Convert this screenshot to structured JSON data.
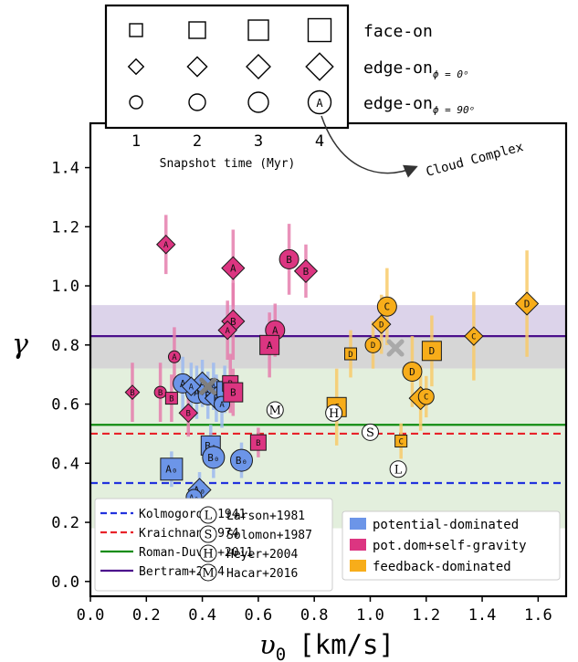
{
  "chart_data": {
    "type": "scatter",
    "xlabel_main": "υ",
    "xlabel_sub": "0",
    "xlabel_unit": "[km/s]",
    "ylabel": "γ",
    "xlim": [
      0.0,
      1.7
    ],
    "ylim": [
      -0.05,
      1.55
    ],
    "xticks": [
      "0.0",
      "0.2",
      "0.4",
      "0.6",
      "0.8",
      "1.0",
      "1.2",
      "1.4",
      "1.6"
    ],
    "xtick_values": [
      0.0,
      0.2,
      0.4,
      0.6,
      0.8,
      1.0,
      1.2,
      1.4,
      1.6
    ],
    "yticks": [
      "0.0",
      "0.2",
      "0.4",
      "0.6",
      "0.8",
      "1.0",
      "1.2",
      "1.4"
    ],
    "ytick_values": [
      0.0,
      0.2,
      0.4,
      0.6,
      0.8,
      1.0,
      1.2,
      1.4
    ],
    "bands": [
      {
        "color": "#dcd3ea",
        "y0": 0.74,
        "y1": 0.935
      },
      {
        "color": "#d6d6d6",
        "y0": 0.72,
        "y1": 0.83
      },
      {
        "color": "#e3efdd",
        "y0": 0.18,
        "y1": 0.72
      }
    ],
    "hlines": [
      {
        "name": "Bertram+2014",
        "y": 0.83,
        "color": "#4b0f8c",
        "dash": "solid"
      },
      {
        "name": "Roman-Duval+2011",
        "y": 0.53,
        "color": "#118c11",
        "dash": "solid"
      },
      {
        "name": "Kraichnan+1974",
        "y": 0.5,
        "color": "#e8232a",
        "dash": "dashed"
      },
      {
        "name": "Kolmogorov+1941",
        "y": 0.333,
        "color": "#2233dd",
        "dash": "dashed"
      }
    ],
    "colors": {
      "potential": "#6c95e8",
      "selfgrav": "#dc3581",
      "feedback": "#f7ad1a",
      "potential_err": "#9dbaf0",
      "selfgrav_err": "#e67fae",
      "feedback_err": "#f9cb6b"
    },
    "series": [
      {
        "name": "potential-dominated",
        "color_key": "potential",
        "points": [
          {
            "x": 0.38,
            "y": 0.64,
            "yerr": 0.09,
            "m": "o",
            "s": 4,
            "label": "A"
          },
          {
            "x": 0.33,
            "y": 0.67,
            "yerr": 0.09,
            "m": "o",
            "s": 3,
            "label": "A"
          },
          {
            "x": 0.42,
            "y": 0.63,
            "yerr": 0.08,
            "m": "o",
            "s": 3,
            "label": "B"
          },
          {
            "x": 0.44,
            "y": 0.66,
            "yerr": 0.08,
            "m": "o",
            "s": 2,
            "label": "A"
          },
          {
            "x": 0.4,
            "y": 0.67,
            "yerr": 0.08,
            "m": "d",
            "s": 3,
            "label": "A"
          },
          {
            "x": 0.36,
            "y": 0.66,
            "yerr": 0.08,
            "m": "d",
            "s": 2,
            "label": "A"
          },
          {
            "x": 0.45,
            "y": 0.62,
            "yerr": 0.08,
            "m": "d",
            "s": 3,
            "label": "B"
          },
          {
            "x": 0.48,
            "y": 0.65,
            "yerr": 0.08,
            "m": "s",
            "s": 2,
            "label": "B"
          },
          {
            "x": 0.47,
            "y": 0.6,
            "yerr": 0.08,
            "m": "o",
            "s": 2,
            "label": "A"
          },
          {
            "x": 0.29,
            "y": 0.38,
            "yerr": 0.06,
            "m": "s",
            "s": 4,
            "label": "A₀"
          },
          {
            "x": 0.43,
            "y": 0.46,
            "yerr": 0.07,
            "m": "s",
            "s": 3,
            "label": "B₀"
          },
          {
            "x": 0.44,
            "y": 0.42,
            "yerr": 0.07,
            "m": "o",
            "s": 4,
            "label": "B₀"
          },
          {
            "x": 0.54,
            "y": 0.41,
            "yerr": 0.06,
            "m": "o",
            "s": 4,
            "label": "B₀"
          },
          {
            "x": 0.39,
            "y": 0.31,
            "yerr": 0.06,
            "m": "d",
            "s": 3,
            "label": "A₀"
          },
          {
            "x": 0.37,
            "y": 0.285,
            "yerr": 0.05,
            "m": "o",
            "s": 2,
            "label": "A₀"
          }
        ]
      },
      {
        "name": "pot.dom+self-gravity",
        "color_key": "selfgrav",
        "points": [
          {
            "x": 0.27,
            "y": 1.14,
            "yerr": 0.1,
            "m": "d",
            "s": 2,
            "label": "A"
          },
          {
            "x": 0.51,
            "y": 1.06,
            "yerr": 0.13,
            "m": "d",
            "s": 3,
            "label": "A"
          },
          {
            "x": 0.71,
            "y": 1.09,
            "yerr": 0.12,
            "m": "o",
            "s": 3,
            "label": "B"
          },
          {
            "x": 0.77,
            "y": 1.05,
            "yerr": 0.09,
            "m": "d",
            "s": 3,
            "label": "B"
          },
          {
            "x": 0.51,
            "y": 0.88,
            "yerr": 0.13,
            "m": "d",
            "s": 3,
            "label": "B"
          },
          {
            "x": 0.49,
            "y": 0.85,
            "yerr": 0.1,
            "m": "d",
            "s": 2,
            "label": "A"
          },
          {
            "x": 0.66,
            "y": 0.85,
            "yerr": 0.09,
            "m": "o",
            "s": 3,
            "label": "A"
          },
          {
            "x": 0.64,
            "y": 0.8,
            "yerr": 0.11,
            "m": "s",
            "s": 3,
            "label": "A"
          },
          {
            "x": 0.3,
            "y": 0.76,
            "yerr": 0.1,
            "m": "o",
            "s": 1,
            "label": "A"
          },
          {
            "x": 0.15,
            "y": 0.64,
            "yerr": 0.1,
            "m": "d",
            "s": 1,
            "label": "B"
          },
          {
            "x": 0.25,
            "y": 0.64,
            "yerr": 0.1,
            "m": "o",
            "s": 1,
            "label": "B"
          },
          {
            "x": 0.29,
            "y": 0.62,
            "yerr": 0.08,
            "m": "s",
            "s": 1,
            "label": "B"
          },
          {
            "x": 0.35,
            "y": 0.57,
            "yerr": 0.08,
            "m": "d",
            "s": 2,
            "label": "B"
          },
          {
            "x": 0.5,
            "y": 0.67,
            "yerr": 0.1,
            "m": "s",
            "s": 2,
            "label": "B"
          },
          {
            "x": 0.51,
            "y": 0.64,
            "yerr": 0.08,
            "m": "s",
            "s": 3,
            "label": "B"
          },
          {
            "x": 0.6,
            "y": 0.47,
            "yerr": 0.05,
            "m": "s",
            "s": 2,
            "label": "B"
          }
        ]
      },
      {
        "name": "feedback-dominated",
        "color_key": "feedback",
        "points": [
          {
            "x": 1.56,
            "y": 0.94,
            "yerr": 0.18,
            "m": "d",
            "s": 3,
            "label": "D"
          },
          {
            "x": 1.06,
            "y": 0.93,
            "yerr": 0.13,
            "m": "o",
            "s": 3,
            "label": "C"
          },
          {
            "x": 1.04,
            "y": 0.87,
            "yerr": 0.1,
            "m": "d",
            "s": 2,
            "label": "D"
          },
          {
            "x": 1.01,
            "y": 0.8,
            "yerr": 0.08,
            "m": "o",
            "s": 2,
            "label": "D"
          },
          {
            "x": 1.37,
            "y": 0.83,
            "yerr": 0.15,
            "m": "d",
            "s": 2,
            "label": "C"
          },
          {
            "x": 0.93,
            "y": 0.77,
            "yerr": 0.08,
            "m": "s",
            "s": 1,
            "label": "D"
          },
          {
            "x": 1.22,
            "y": 0.78,
            "yerr": 0.12,
            "m": "s",
            "s": 3,
            "label": "D"
          },
          {
            "x": 1.15,
            "y": 0.71,
            "yerr": 0.12,
            "m": "o",
            "s": 3,
            "label": "D"
          },
          {
            "x": 1.18,
            "y": 0.62,
            "yerr": 0.11,
            "m": "d",
            "s": 3,
            "label": "C"
          },
          {
            "x": 1.2,
            "y": 0.625,
            "yerr": 0.07,
            "m": "o",
            "s": 2,
            "label": "C"
          },
          {
            "x": 0.88,
            "y": 0.59,
            "yerr": 0.13,
            "m": "s",
            "s": 3,
            "label": "C"
          },
          {
            "x": 1.11,
            "y": 0.475,
            "yerr": 0.06,
            "m": "s",
            "s": 1,
            "label": "C"
          }
        ]
      }
    ],
    "cloud_complex": [
      {
        "x": 0.42,
        "y": 0.66,
        "color": "#7f7f7f"
      },
      {
        "x": 1.09,
        "y": 0.79,
        "color": "#a9a9a9"
      }
    ],
    "observations": [
      {
        "x": 1.1,
        "y": 0.38,
        "letter": "L",
        "name": "Larson+1981"
      },
      {
        "x": 1.0,
        "y": 0.505,
        "letter": "S",
        "name": "Solomon+1987"
      },
      {
        "x": 0.87,
        "y": 0.57,
        "letter": "H",
        "name": "Heyer+2004"
      },
      {
        "x": 0.66,
        "y": 0.58,
        "letter": "M",
        "name": "Hacar+2016"
      }
    ],
    "legend_lines": [
      {
        "label": "Kolmogorov+1941",
        "color": "#2233dd",
        "dash": true
      },
      {
        "label": "Kraichnan+1974",
        "color": "#e8232a",
        "dash": true
      },
      {
        "label": "Roman-Duval+2011",
        "color": "#118c11",
        "dash": false
      },
      {
        "label": "Bertram+2014",
        "color": "#4b0f8c",
        "dash": false
      }
    ],
    "legend_obs": [
      {
        "letter": "L",
        "label": "Larson+1981"
      },
      {
        "letter": "S",
        "label": "Solomon+1987"
      },
      {
        "letter": "H",
        "label": "Heyer+2004"
      },
      {
        "letter": "M",
        "label": "Hacar+2016"
      }
    ],
    "legend_groups": [
      {
        "label": "potential-dominated",
        "color": "#6c95e8"
      },
      {
        "label": "pot.dom+self-gravity",
        "color": "#dc3581"
      },
      {
        "label": "feedback-dominated",
        "color": "#f7ad1a"
      }
    ],
    "key": {
      "rows": [
        {
          "marker": "s",
          "label_main": "face-on",
          "label_sub": ""
        },
        {
          "marker": "d",
          "label_main": "edge-on",
          "label_sub": "ϕ = 0ᵒ"
        },
        {
          "marker": "o",
          "label_main": "edge-on",
          "label_sub": "ϕ = 90ᵒ"
        }
      ],
      "snapshots": [
        "1",
        "2",
        "3",
        "4"
      ],
      "xlabel": "Snapshot time (Myr)",
      "annotation_letter": "A",
      "arrow_label": "Cloud Complex"
    }
  }
}
